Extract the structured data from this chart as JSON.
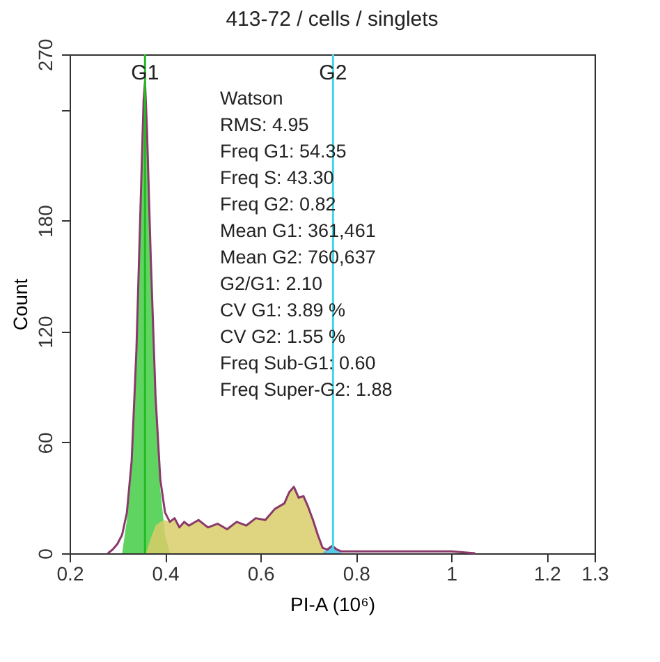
{
  "chart_data": {
    "type": "area",
    "title": "413-72 / cells / singlets",
    "xlabel": "PI-A (10⁶)",
    "ylabel": "Count",
    "xlim": [
      0.2,
      1.3
    ],
    "xticks": [
      0.2,
      0.4,
      0.6,
      0.8,
      1,
      1.2,
      1.3
    ],
    "ylim": [
      0,
      270
    ],
    "yticks": [
      0,
      60,
      120,
      180,
      {
        "value": 240,
        "label": null
      },
      270
    ],
    "grid": false,
    "ref_lines": [
      {
        "axis": "x",
        "value": 0.358,
        "label": "G1",
        "color": "#22bb22"
      },
      {
        "axis": "x",
        "value": 0.752,
        "label": "G2",
        "color": "#40d8e8"
      }
    ],
    "annotations": [
      "Watson",
      "RMS: 4.95",
      "Freq G1: 54.35",
      "Freq S: 43.30",
      "Freq G2: 0.82",
      "Mean G1: 361,461",
      "Mean G2: 760,637",
      "G2/G1: 2.10",
      "CV G1: 3.89 %",
      "CV G2: 1.55 %",
      "Freq Sub-G1: 0.60",
      "Freq Super-G2: 1.88"
    ],
    "series": [
      {
        "color": "#44cc44",
        "x": [
          0.31,
          0.32,
          0.33,
          0.34,
          0.35,
          0.358,
          0.365,
          0.37,
          0.38,
          0.39,
          0.4,
          0.41
        ],
        "values": [
          0,
          18,
          45,
          105,
          195,
          255,
          200,
          150,
          80,
          35,
          10,
          0
        ]
      },
      {
        "color": "#d9cc6a",
        "x": [
          0.36,
          0.37,
          0.38,
          0.39,
          0.4,
          0.41,
          0.42,
          0.43,
          0.44,
          0.45,
          0.47,
          0.49,
          0.51,
          0.53,
          0.55,
          0.57,
          0.59,
          0.61,
          0.63,
          0.65,
          0.66,
          0.67,
          0.68,
          0.69,
          0.7,
          0.71,
          0.72,
          0.73,
          0.74
        ],
        "values": [
          0,
          8,
          15,
          17,
          18,
          17,
          19,
          14,
          17,
          15,
          18,
          14,
          16,
          13,
          17,
          15,
          19,
          18,
          24,
          27,
          33,
          36,
          30,
          31,
          25,
          18,
          10,
          3,
          0
        ]
      },
      {
        "color": "#44bbe8",
        "x": [
          0.73,
          0.745,
          0.755,
          0.77
        ],
        "values": [
          0,
          4,
          4,
          0
        ]
      },
      {
        "type": "line",
        "color": "#8a3a6a",
        "x": [
          0.28,
          0.29,
          0.3,
          0.31,
          0.32,
          0.33,
          0.34,
          0.35,
          0.355,
          0.358,
          0.362,
          0.37,
          0.38,
          0.39,
          0.4,
          0.41,
          0.42,
          0.43,
          0.44,
          0.45,
          0.47,
          0.49,
          0.51,
          0.53,
          0.55,
          0.57,
          0.59,
          0.61,
          0.63,
          0.65,
          0.66,
          0.67,
          0.68,
          0.69,
          0.7,
          0.71,
          0.72,
          0.73,
          0.74,
          0.75,
          0.76,
          0.77,
          0.8,
          0.85,
          0.9,
          0.95,
          1,
          1.05
        ],
        "values": [
          0,
          2,
          5,
          10,
          22,
          50,
          110,
          200,
          245,
          255,
          230,
          160,
          85,
          40,
          22,
          17,
          19,
          14,
          17,
          15,
          18,
          14,
          16,
          13,
          17,
          15,
          19,
          18,
          24,
          27,
          33,
          36,
          30,
          31,
          25,
          18,
          10,
          3,
          2,
          4,
          2,
          1,
          1,
          1,
          1,
          1,
          1,
          0
        ]
      }
    ]
  }
}
